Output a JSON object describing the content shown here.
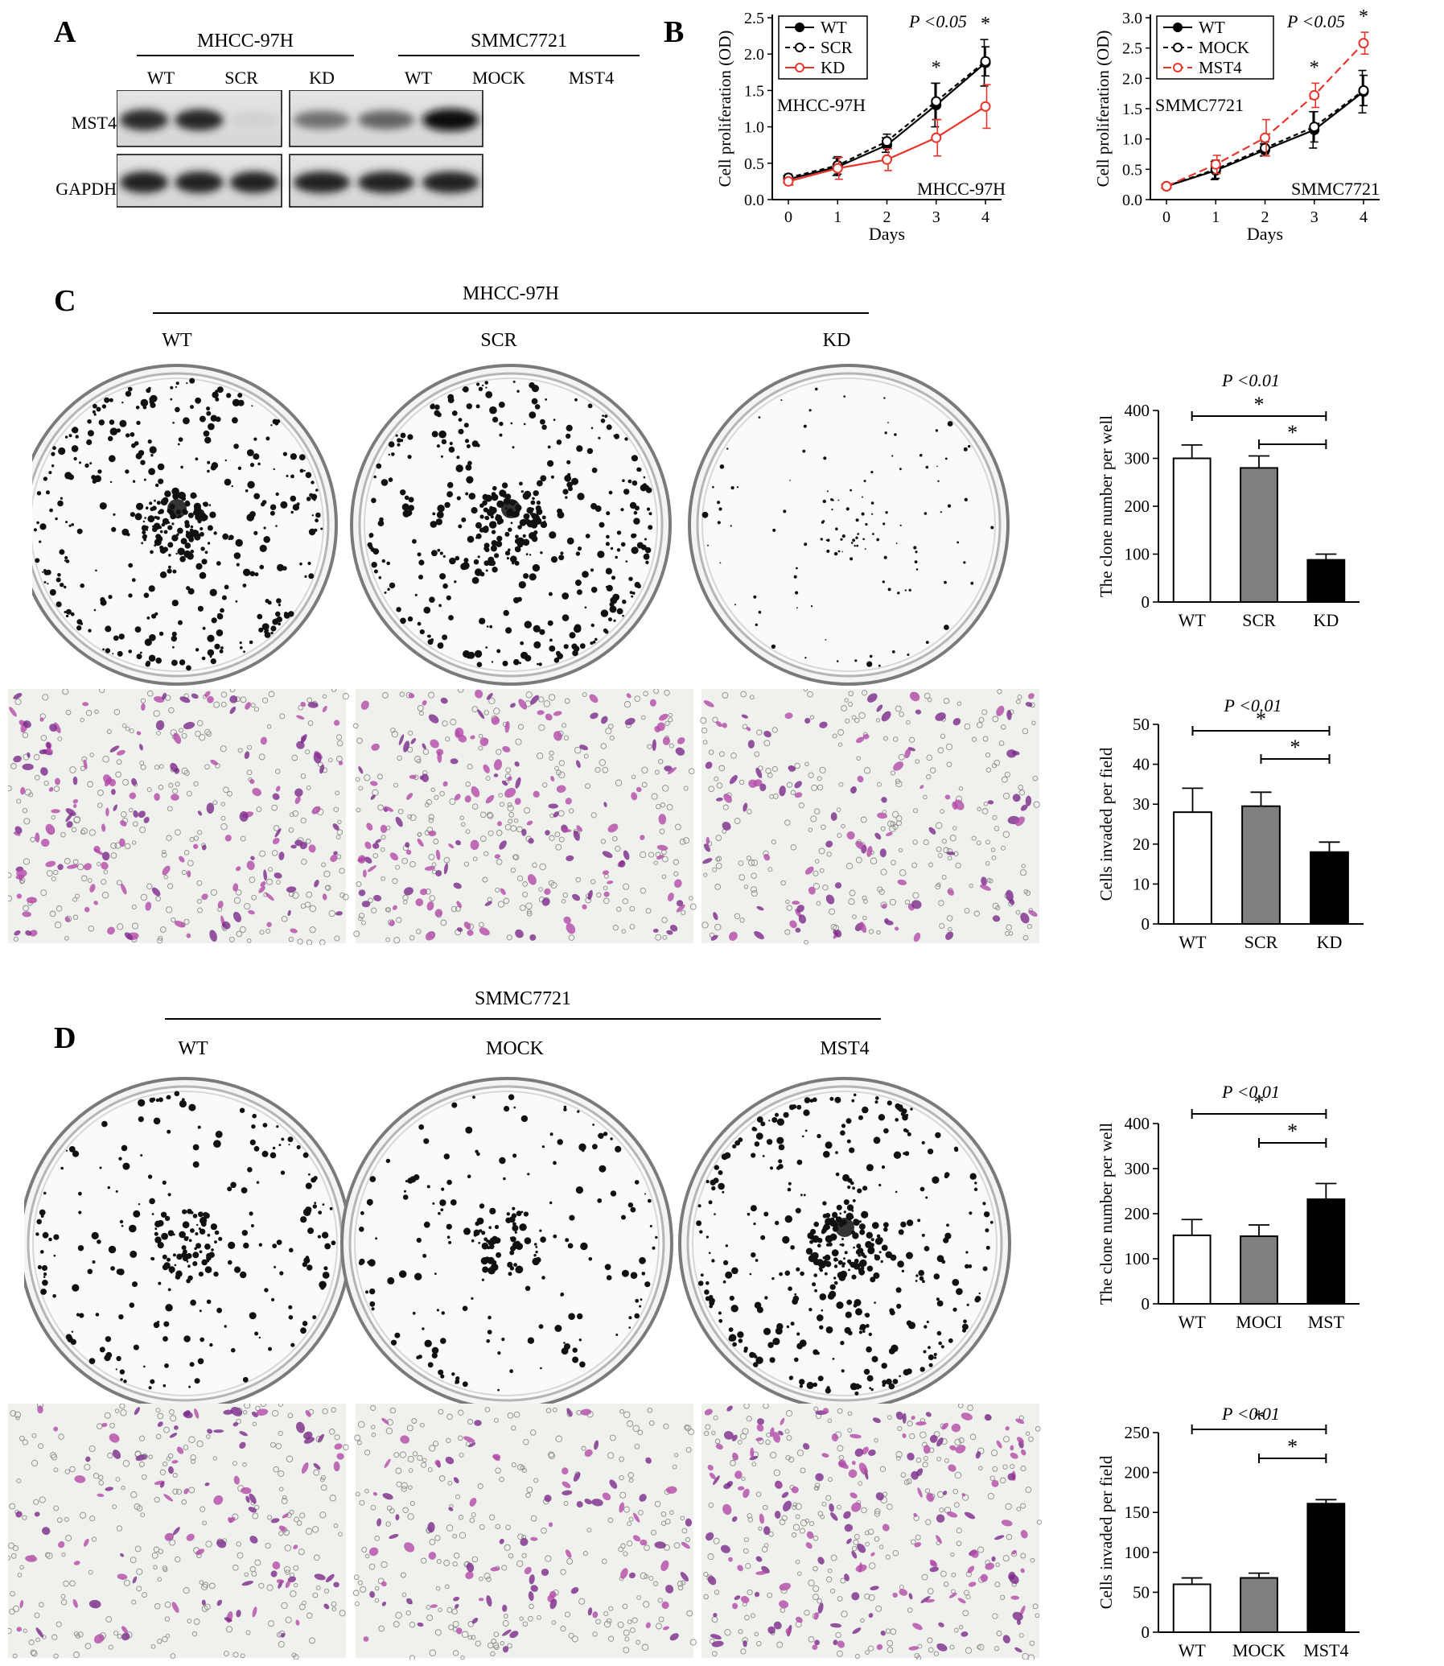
{
  "panels": {
    "A": "A",
    "B": "B",
    "C": "C",
    "D": "D"
  },
  "panel_a": {
    "groups": [
      {
        "title": "MHCC-97H",
        "lanes": [
          "WT",
          "SCR",
          "KD"
        ]
      },
      {
        "title": "SMMC7721",
        "lanes": [
          "WT",
          "MOCK",
          "MST4"
        ]
      }
    ],
    "rows": [
      "MST4",
      "GAPDH"
    ],
    "band_intensity": {
      "MST4": [
        [
          0.85,
          0.88,
          0.12
        ],
        [
          0.55,
          0.6,
          1.0
        ]
      ],
      "GAPDH": [
        [
          0.9,
          0.9,
          0.9
        ],
        [
          0.9,
          0.9,
          0.9
        ]
      ]
    }
  },
  "panel_c": {
    "title": "MHCC-97H",
    "labels": [
      "WT",
      "SCR",
      "KD"
    ],
    "colony_density": [
      1.0,
      1.0,
      0.2
    ],
    "invasion_density": [
      0.9,
      0.9,
      0.55
    ]
  },
  "panel_d": {
    "title": "SMMC7721",
    "labels": [
      "WT",
      "MOCK",
      "MST4"
    ],
    "colony_density": [
      0.55,
      0.45,
      1.0
    ],
    "invasion_density": [
      0.5,
      0.45,
      1.0
    ]
  },
  "colors": {
    "white_bar": "#ffffff",
    "gray_bar": "#808080",
    "black_bar": "#000000",
    "red": "#e8352c",
    "black": "#000000",
    "stain": "#8a2a8c"
  },
  "chart_data": [
    {
      "type": "line",
      "xlabel": "Days",
      "ylabel": "Cell proliferation (OD)",
      "x": [
        0,
        1,
        2,
        3,
        4
      ],
      "ylim": [
        0,
        2.5
      ],
      "yticks": [
        0.0,
        0.5,
        1.0,
        1.5,
        2.0,
        2.5
      ],
      "pvalue": "P <0.05",
      "annotation_top": "MHCC-97H",
      "annotation_bottom": "MHCC-97H",
      "significance": [
        "*",
        "*"
      ],
      "series": [
        {
          "name": "WT",
          "values": [
            0.28,
            0.45,
            0.75,
            1.3,
            1.88
          ],
          "errors": [
            0.05,
            0.12,
            0.1,
            0.3,
            0.32
          ]
        },
        {
          "name": "SCR",
          "values": [
            0.3,
            0.47,
            0.8,
            1.35,
            1.9
          ],
          "errors": [
            0.05,
            0.12,
            0.1,
            0.25,
            0.2
          ]
        },
        {
          "name": "KD",
          "values": [
            0.25,
            0.43,
            0.55,
            0.85,
            1.28
          ],
          "errors": [
            0.05,
            0.15,
            0.15,
            0.25,
            0.3
          ]
        }
      ],
      "legend": "top-left"
    },
    {
      "type": "line",
      "xlabel": "Days",
      "ylabel": "Cell proliferation (OD)",
      "x": [
        0,
        1,
        2,
        3,
        4
      ],
      "ylim": [
        0,
        3.0
      ],
      "yticks": [
        0.0,
        0.5,
        1.0,
        1.5,
        2.0,
        2.5,
        3.0
      ],
      "pvalue": "P <0.05",
      "annotation_top": "SMMC7721",
      "annotation_bottom": "SMMC7721",
      "significance": [
        "*",
        "*"
      ],
      "series": [
        {
          "name": "WT",
          "values": [
            0.22,
            0.48,
            0.82,
            1.15,
            1.78
          ],
          "errors": [
            0.03,
            0.15,
            0.1,
            0.3,
            0.35
          ]
        },
        {
          "name": "MOCK",
          "values": [
            0.22,
            0.5,
            0.85,
            1.2,
            1.8
          ],
          "errors": [
            0.03,
            0.15,
            0.1,
            0.25,
            0.25
          ]
        },
        {
          "name": "MST4",
          "values": [
            0.22,
            0.58,
            1.02,
            1.72,
            2.58
          ],
          "errors": [
            0.03,
            0.15,
            0.3,
            0.2,
            0.18
          ]
        }
      ],
      "legend": "top-left"
    },
    {
      "type": "bar",
      "categories": [
        "WT",
        "SCR",
        "KD"
      ],
      "values": [
        300,
        280,
        88
      ],
      "errors": [
        28,
        25,
        12
      ],
      "ylabel": "The clone number per well",
      "ylim": [
        0,
        400
      ],
      "yticks": [
        0,
        100,
        200,
        300,
        400
      ],
      "pvalue": "P <0.01",
      "significance": [
        "*",
        "*"
      ]
    },
    {
      "type": "bar",
      "categories": [
        "WT",
        "SCR",
        "KD"
      ],
      "values": [
        28,
        29.5,
        18
      ],
      "errors": [
        6,
        3.5,
        2.5
      ],
      "ylabel": "Cells invaded per field",
      "ylim": [
        0,
        50
      ],
      "yticks": [
        0,
        10,
        20,
        30,
        40,
        50
      ],
      "pvalue": "P <0.01",
      "significance": [
        "*",
        "*"
      ]
    },
    {
      "type": "bar",
      "categories": [
        "WT",
        "MOCI",
        "MST"
      ],
      "values": [
        152,
        150,
        232
      ],
      "errors": [
        35,
        25,
        35
      ],
      "ylabel": "The clone number per well",
      "ylim": [
        0,
        400
      ],
      "yticks": [
        0,
        100,
        200,
        300,
        400
      ],
      "pvalue": "P <0.01",
      "significance": [
        "*",
        "*"
      ]
    },
    {
      "type": "bar",
      "categories": [
        "WT",
        "MOCK",
        "MST4"
      ],
      "values": [
        60,
        68,
        161
      ],
      "errors": [
        8,
        6,
        5
      ],
      "ylabel": "Cells invaded per field",
      "ylim": [
        0,
        250
      ],
      "yticks": [
        0,
        50,
        100,
        150,
        200,
        250
      ],
      "pvalue": "P <0.01",
      "significance": [
        "*",
        "*"
      ]
    }
  ]
}
